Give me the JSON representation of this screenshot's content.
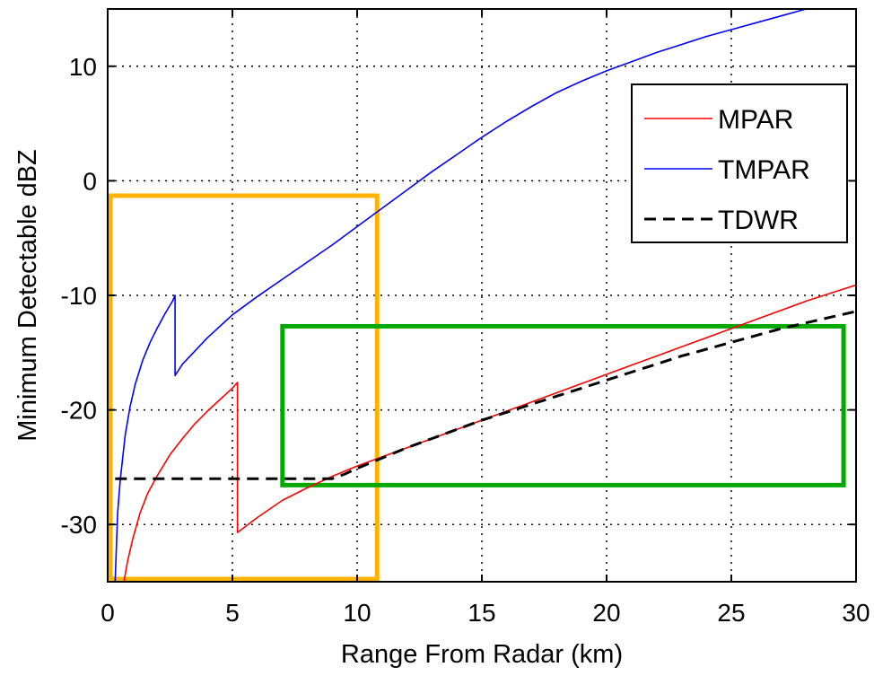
{
  "chart_data": {
    "type": "line",
    "title": "",
    "xlabel": "Range From Radar (km)",
    "ylabel": "Minimum Detectable dBZ",
    "xlim": [
      0,
      30
    ],
    "ylim": [
      -35,
      15
    ],
    "xticks": [
      0,
      5,
      10,
      15,
      20,
      25,
      30
    ],
    "yticks": [
      -30,
      -20,
      -10,
      0,
      10
    ],
    "xtick_labels": [
      "0",
      "5",
      "10",
      "15",
      "20",
      "25",
      "30"
    ],
    "ytick_labels": [
      "-30",
      "-20",
      "-10",
      "0",
      "10"
    ],
    "grid": true,
    "legend_position": "top-right",
    "series": [
      {
        "name": "MPAR",
        "color": "#ff0000",
        "style": "solid",
        "x": [
          0.65,
          0.8,
          1,
          1.3,
          1.6,
          2,
          2.5,
          3,
          3.5,
          4,
          4.5,
          5,
          5.2,
          5.2,
          6,
          7,
          8,
          9,
          10,
          11,
          12,
          13,
          14,
          15,
          16,
          17,
          18,
          19,
          20,
          21,
          22,
          23,
          24,
          25,
          26,
          27,
          28,
          29,
          30
        ],
        "y": [
          -35,
          -33.2,
          -31.3,
          -29,
          -27.3,
          -25.7,
          -23.9,
          -22.5,
          -21.2,
          -20.1,
          -19.1,
          -18.1,
          -17.6,
          -30.7,
          -29.4,
          -27.9,
          -26.8,
          -25.8,
          -24.9,
          -24.1,
          -23.3,
          -22.5,
          -21.7,
          -20.9,
          -20.1,
          -19.3,
          -18.5,
          -17.7,
          -16.9,
          -16.1,
          -15.3,
          -14.5,
          -13.7,
          -12.9,
          -12.1,
          -11.3,
          -10.5,
          -9.8,
          -9.1
        ]
      },
      {
        "name": "TMPAR",
        "color": "#0000ff",
        "style": "solid",
        "x": [
          0.3,
          0.4,
          0.5,
          0.7,
          0.9,
          1.1,
          1.4,
          1.7,
          2,
          2.3,
          2.6,
          2.7,
          2.7,
          3,
          4,
          5,
          6,
          7,
          8,
          9,
          10,
          11,
          12,
          13,
          14,
          15,
          16,
          17,
          18,
          19,
          20,
          21,
          22,
          23,
          24,
          25,
          26,
          27,
          28,
          29,
          30
        ],
        "y": [
          -35,
          -29,
          -26.2,
          -22.2,
          -19.7,
          -17.8,
          -15.7,
          -14.1,
          -12.8,
          -11.6,
          -10.5,
          -10,
          -17,
          -16,
          -13.7,
          -11.7,
          -10.1,
          -8.6,
          -7.1,
          -5.6,
          -4,
          -2.4,
          -0.8,
          0.8,
          2.3,
          3.8,
          5.2,
          6.5,
          7.7,
          8.7,
          9.6,
          10.4,
          11.2,
          11.9,
          12.6,
          13.2,
          13.8,
          14.4,
          15,
          15.5,
          16
        ]
      },
      {
        "name": "TDWR",
        "color": "#000000",
        "style": "dashed",
        "x": [
          0.3,
          1,
          2,
          3,
          4,
          5,
          6,
          7,
          8,
          9,
          9.5,
          10,
          11,
          12,
          13,
          14,
          15,
          16,
          17,
          18,
          19,
          20,
          21,
          22,
          23,
          24,
          25,
          26,
          27,
          28,
          29,
          30
        ],
        "y": [
          -26,
          -26,
          -26,
          -26,
          -26,
          -26,
          -26,
          -26,
          -26,
          -26,
          -25.6,
          -25.1,
          -24.2,
          -23.3,
          -22.5,
          -21.7,
          -20.9,
          -20.2,
          -19.5,
          -18.8,
          -18.1,
          -17.4,
          -16.7,
          -16,
          -15.3,
          -14.7,
          -14.1,
          -13.5,
          -12.9,
          -12.4,
          -11.9,
          -11.4
        ]
      }
    ],
    "highlight_boxes": [
      {
        "color": "#ffb300",
        "x_range": [
          0,
          10.8
        ],
        "y_range": [
          -35,
          -1.3
        ]
      },
      {
        "color": "#00a800",
        "x_range": [
          6.9,
          29.5
        ],
        "y_range": [
          -12.7,
          -26.8
        ]
      }
    ]
  }
}
